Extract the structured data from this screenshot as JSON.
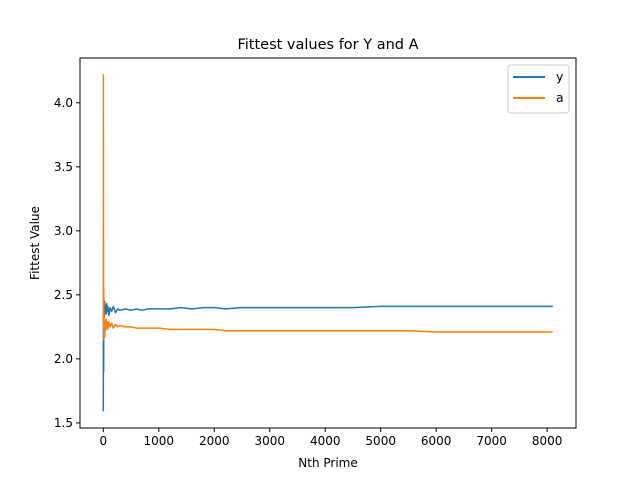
{
  "chart_data": {
    "type": "line",
    "title": "Fittest values for Y and A",
    "xlabel": "Nth Prime",
    "ylabel": "Fittest Value",
    "xlim": [
      -420,
      8520
    ],
    "ylim": [
      1.46,
      4.35
    ],
    "xticks": [
      0,
      1000,
      2000,
      3000,
      4000,
      5000,
      6000,
      7000,
      8000
    ],
    "yticks": [
      1.5,
      2.0,
      2.5,
      3.0,
      3.5,
      4.0
    ],
    "grid": false,
    "legend_position": "top-right",
    "series": [
      {
        "name": "y",
        "color": "#1f77b4",
        "x": [
          0,
          2,
          4,
          6,
          8,
          10,
          13,
          16,
          20,
          25,
          30,
          40,
          50,
          60,
          70,
          80,
          100,
          120,
          150,
          180,
          220,
          260,
          300,
          400,
          500,
          600,
          700,
          800,
          1000,
          1200,
          1400,
          1600,
          1800,
          2000,
          2200,
          2500,
          2800,
          3000,
          3500,
          4000,
          4500,
          5000,
          5500,
          6000,
          6500,
          7000,
          7500,
          8000,
          8100
        ],
        "y": [
          1.59,
          2.2,
          2.45,
          1.9,
          2.3,
          2.47,
          2.38,
          2.44,
          2.33,
          2.45,
          2.36,
          2.42,
          2.35,
          2.43,
          2.37,
          2.41,
          2.34,
          2.4,
          2.37,
          2.41,
          2.36,
          2.39,
          2.38,
          2.39,
          2.38,
          2.39,
          2.38,
          2.39,
          2.39,
          2.39,
          2.4,
          2.39,
          2.4,
          2.4,
          2.39,
          2.4,
          2.4,
          2.4,
          2.4,
          2.4,
          2.4,
          2.41,
          2.41,
          2.41,
          2.41,
          2.41,
          2.41,
          2.41,
          2.41
        ]
      },
      {
        "name": "a",
        "color": "#ff7f0e",
        "x": [
          0,
          2,
          4,
          6,
          8,
          10,
          13,
          16,
          20,
          25,
          30,
          40,
          50,
          60,
          70,
          80,
          100,
          120,
          150,
          180,
          220,
          260,
          300,
          400,
          500,
          600,
          700,
          800,
          1000,
          1200,
          1400,
          1600,
          1800,
          2000,
          2200,
          2500,
          2800,
          3000,
          3500,
          4000,
          4500,
          5000,
          5500,
          6000,
          6500,
          7000,
          7500,
          8000,
          8100
        ],
        "y": [
          2.3,
          4.22,
          2.65,
          2.2,
          2.55,
          2.15,
          2.35,
          2.2,
          2.3,
          2.17,
          2.28,
          2.22,
          2.31,
          2.24,
          2.29,
          2.23,
          2.29,
          2.25,
          2.28,
          2.24,
          2.27,
          2.25,
          2.26,
          2.25,
          2.25,
          2.24,
          2.24,
          2.24,
          2.24,
          2.23,
          2.23,
          2.23,
          2.23,
          2.23,
          2.22,
          2.22,
          2.22,
          2.22,
          2.22,
          2.22,
          2.22,
          2.22,
          2.22,
          2.21,
          2.21,
          2.21,
          2.21,
          2.21,
          2.21
        ]
      }
    ]
  }
}
